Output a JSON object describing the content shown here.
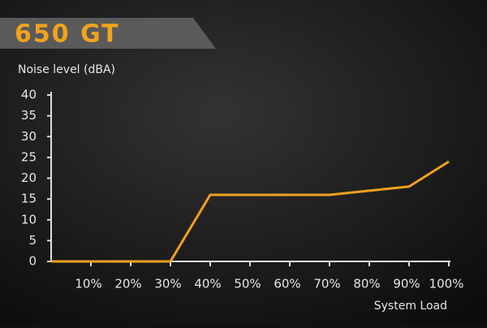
{
  "chart_data": {
    "type": "line",
    "title": "650 GT",
    "y_label": "Noise level (dBA)",
    "x_label": "System Load",
    "x": [
      0,
      30,
      40,
      70,
      90,
      100
    ],
    "values": [
      0,
      0,
      16,
      16,
      18,
      24
    ],
    "color": "#f0a020",
    "xlim": [
      0,
      100
    ],
    "xticks": [
      {
        "value": 10,
        "label": "10%"
      },
      {
        "value": 20,
        "label": "20%"
      },
      {
        "value": 30,
        "label": "30%"
      },
      {
        "value": 40,
        "label": "40%"
      },
      {
        "value": 50,
        "label": "50%"
      },
      {
        "value": 60,
        "label": "60%"
      },
      {
        "value": 70,
        "label": "70%"
      },
      {
        "value": 80,
        "label": "80%"
      },
      {
        "value": 90,
        "label": "90%"
      },
      {
        "value": 100,
        "label": "100%"
      }
    ],
    "ylim": [
      0,
      40
    ],
    "yticks": [
      0,
      5,
      10,
      15,
      20,
      25,
      30,
      35,
      40
    ],
    "grid": true
  }
}
